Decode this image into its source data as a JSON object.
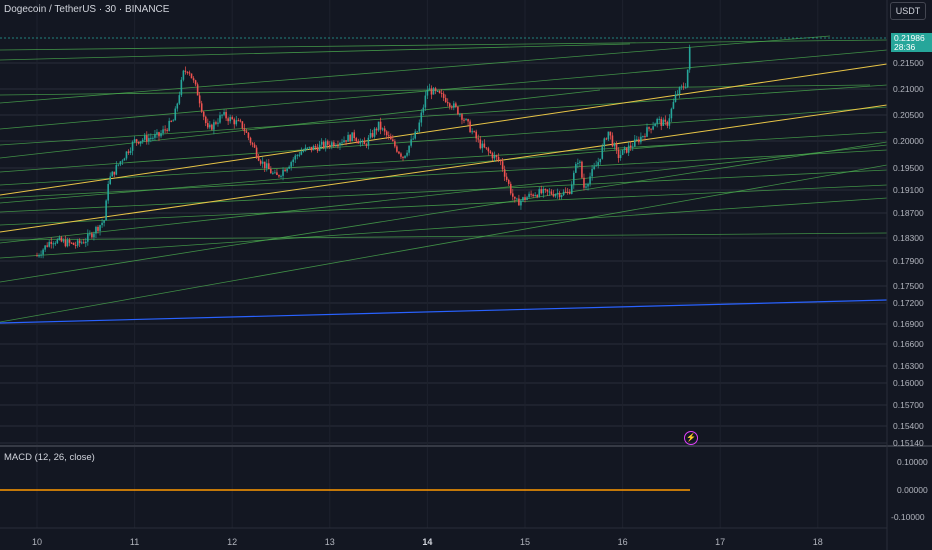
{
  "header": {
    "title": "Dogecoin / TetherUS · 30 · BINANCE",
    "currency_button": "USDT"
  },
  "indicator": {
    "title": "MACD (12, 26, close)"
  },
  "last_price": {
    "value": "0.21986",
    "countdown": "28:36"
  },
  "colors": {
    "background": "#131722",
    "grid": "#2a2e39",
    "up": "#26a69a",
    "down": "#ef5350",
    "trend_green": "#4caf50",
    "trend_yellow": "#e8c547",
    "trend_blue": "#2962ff",
    "macd": "#ff9800"
  },
  "chart_data": {
    "type": "candlestick",
    "y_ticks": [
      "0.21500",
      "0.21000",
      "0.20500",
      "0.20000",
      "0.19500",
      "0.19100",
      "0.18700",
      "0.18300",
      "0.17900",
      "0.17500",
      "0.17200",
      "0.16900",
      "0.16600",
      "0.16300",
      "0.16000",
      "0.15700",
      "0.15400",
      "0.15140"
    ],
    "x_ticks": [
      {
        "label": "10",
        "bold": false
      },
      {
        "label": "11",
        "bold": false
      },
      {
        "label": "12",
        "bold": false
      },
      {
        "label": "13",
        "bold": false
      },
      {
        "label": "14",
        "bold": true
      },
      {
        "label": "15",
        "bold": false
      },
      {
        "label": "16",
        "bold": false
      },
      {
        "label": "17",
        "bold": false
      },
      {
        "label": "18",
        "bold": false
      }
    ],
    "price_path": [
      [
        10.0,
        0.178
      ],
      [
        10.15,
        0.181
      ],
      [
        10.4,
        0.18
      ],
      [
        10.5,
        0.181
      ],
      [
        10.7,
        0.185
      ],
      [
        10.72,
        0.192
      ],
      [
        10.85,
        0.196
      ],
      [
        11.0,
        0.2
      ],
      [
        11.25,
        0.201
      ],
      [
        11.4,
        0.204
      ],
      [
        11.5,
        0.213
      ],
      [
        11.55,
        0.214
      ],
      [
        11.65,
        0.209
      ],
      [
        11.75,
        0.202
      ],
      [
        11.9,
        0.205
      ],
      [
        12.1,
        0.203
      ],
      [
        12.3,
        0.196
      ],
      [
        12.45,
        0.193
      ],
      [
        12.7,
        0.198
      ],
      [
        12.9,
        0.199
      ],
      [
        13.1,
        0.2
      ],
      [
        13.25,
        0.201
      ],
      [
        13.35,
        0.199
      ],
      [
        13.5,
        0.203
      ],
      [
        13.75,
        0.197
      ],
      [
        13.9,
        0.202
      ],
      [
        14.0,
        0.21
      ],
      [
        14.2,
        0.208
      ],
      [
        14.35,
        0.205
      ],
      [
        14.55,
        0.199
      ],
      [
        14.75,
        0.196
      ],
      [
        14.9,
        0.188
      ],
      [
        15.1,
        0.19
      ],
      [
        15.35,
        0.19
      ],
      [
        15.45,
        0.19
      ],
      [
        15.55,
        0.197
      ],
      [
        15.6,
        0.191
      ],
      [
        15.75,
        0.196
      ],
      [
        15.85,
        0.202
      ],
      [
        15.95,
        0.197
      ],
      [
        16.15,
        0.2
      ],
      [
        16.35,
        0.204
      ],
      [
        16.45,
        0.203
      ],
      [
        16.55,
        0.209
      ],
      [
        16.65,
        0.211
      ],
      [
        16.68,
        0.216
      ],
      [
        16.7,
        0.2199
      ]
    ],
    "macd": {
      "range": [
        -0.1,
        0.1
      ],
      "ticks": [
        "0.10000",
        "0.00000",
        "-0.10000"
      ],
      "value": 0.0
    }
  }
}
